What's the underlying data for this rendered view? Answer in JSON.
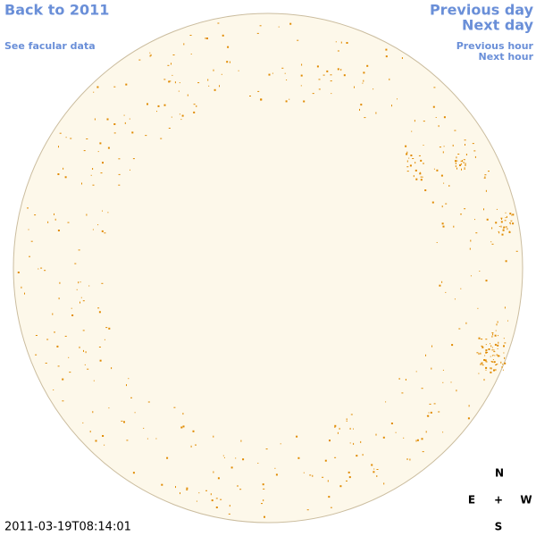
{
  "nav": {
    "back": "Back to 2011",
    "facular": "See facular data",
    "previous_day": "Previous day",
    "next_day": "Next day",
    "previous_hour": "Previous hour",
    "next_hour": "Next hour"
  },
  "compass": {
    "north": "N",
    "east": "E",
    "center": "+",
    "west": "W",
    "south": "S"
  },
  "timestamp": "2011-03-19T08:14:01"
}
